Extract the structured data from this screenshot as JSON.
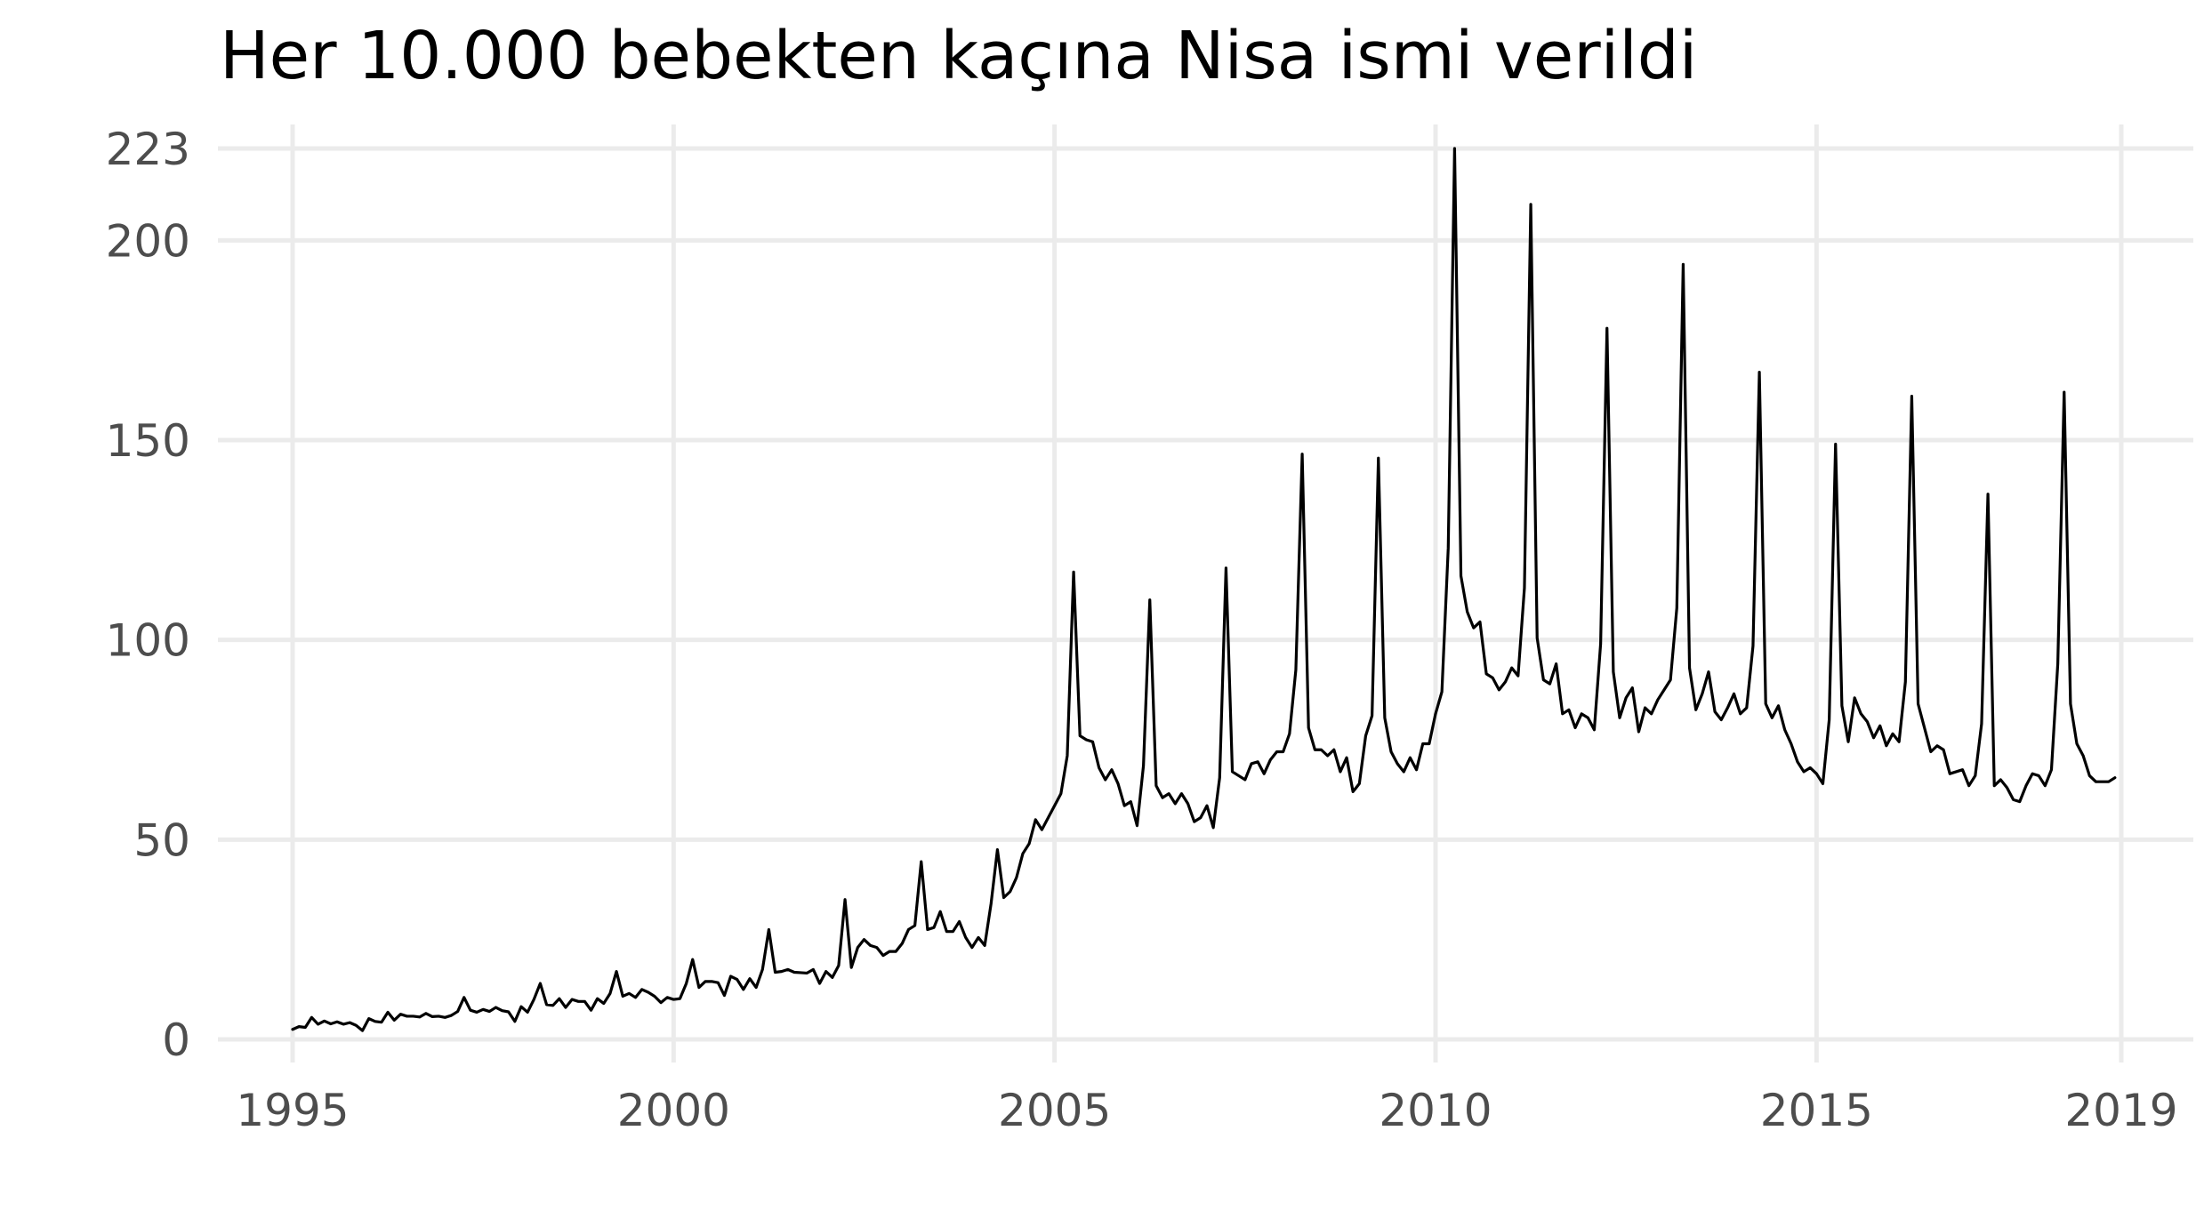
{
  "chart_data": {
    "type": "line",
    "title": "Her 10.000 bebekten kaçına Nisa ismi verildi",
    "subtitle": "",
    "xlabel": "",
    "ylabel": "",
    "xlim": [
      1994.85,
      2019.4
    ],
    "ylim": [
      -5,
      232
    ],
    "x_ticks": [
      {
        "value": 1995,
        "label": "1995"
      },
      {
        "value": 2000,
        "label": "2000"
      },
      {
        "value": 2005,
        "label": "2005"
      },
      {
        "value": 2010,
        "label": "2010"
      },
      {
        "value": 2015,
        "label": "2015"
      },
      {
        "value": 2019,
        "label": "2019"
      }
    ],
    "y_ticks": [
      {
        "value": 0,
        "label": "0"
      },
      {
        "value": 50,
        "label": "50"
      },
      {
        "value": 100,
        "label": "100"
      },
      {
        "value": 150,
        "label": "150"
      },
      {
        "value": 200,
        "label": "200"
      },
      {
        "value": 223,
        "label": "223"
      }
    ],
    "grid": true,
    "line_color": "#000000",
    "grid_color": "#ebebeb",
    "series": [
      {
        "x_start": 1995.0,
        "x_step": 0.0833333,
        "values": [
          2.5,
          3.2,
          3.0,
          5.5,
          3.8,
          4.6,
          3.9,
          4.4,
          3.8,
          4.2,
          3.5,
          2.2,
          5.2,
          4.5,
          4.3,
          6.8,
          4.8,
          6.3,
          5.8,
          5.8,
          5.6,
          6.5,
          5.7,
          5.8,
          5.5,
          6.0,
          7.0,
          10.5,
          7.3,
          6.8,
          7.5,
          7.0,
          8.0,
          7.2,
          6.9,
          4.5,
          8.2,
          6.8,
          10.0,
          14.0,
          8.7,
          8.5,
          10.2,
          8.0,
          10.0,
          9.5,
          9.5,
          7.3,
          10.2,
          9.0,
          11.5,
          17.0,
          10.8,
          11.5,
          10.5,
          12.5,
          11.8,
          10.8,
          9.2,
          10.5,
          10.0,
          10.2,
          14.0,
          20.0,
          13.0,
          14.5,
          14.5,
          14.2,
          11.0,
          15.8,
          15.0,
          12.5,
          15.2,
          13.0,
          17.5,
          27.5,
          16.8,
          17.0,
          17.5,
          16.8,
          16.7,
          16.6,
          17.5,
          14.0,
          17.0,
          15.5,
          18.5,
          35.0,
          18.0,
          23.0,
          25.0,
          23.5,
          23.0,
          21.0,
          22.0,
          22.0,
          24.0,
          27.5,
          28.5,
          44.5,
          27.5,
          28.0,
          32.0,
          27.0,
          27.0,
          29.5,
          25.5,
          23.0,
          25.5,
          23.5,
          34.0,
          47.5,
          35.5,
          37.0,
          40.5,
          46.5,
          49.0,
          55.0,
          52.5,
          55.5,
          58.5,
          61.5,
          71.0,
          117.0,
          76.0,
          75.0,
          74.5,
          68.0,
          65.0,
          67.5,
          64.0,
          58.5,
          59.5,
          53.5,
          68.5,
          110.0,
          63.5,
          60.5,
          61.5,
          59.0,
          61.5,
          59.0,
          54.5,
          55.5,
          58.5,
          53.0,
          65.5,
          118.0,
          67.0,
          66.0,
          65.0,
          69.0,
          69.5,
          66.5,
          70.0,
          72.0,
          72.0,
          76.5,
          92.5,
          146.5,
          78.0,
          72.5,
          72.5,
          71.0,
          72.5,
          67.0,
          70.5,
          62.0,
          64.0,
          76.0,
          81.0,
          145.5,
          80.5,
          72.0,
          69.0,
          67.0,
          70.5,
          67.5,
          74.0,
          74.0,
          81.5,
          87.0,
          123.0,
          223.0,
          116.0,
          107.0,
          103.0,
          104.5,
          91.5,
          90.5,
          87.5,
          89.5,
          93.0,
          91.0,
          113.0,
          209.0,
          100.5,
          90.0,
          89.0,
          94.0,
          81.5,
          82.5,
          78.0,
          81.5,
          80.5,
          77.5,
          99.0,
          178.0,
          92.0,
          80.5,
          85.5,
          88.0,
          77.0,
          83.0,
          81.5,
          85.0,
          87.5,
          90.0,
          108.0,
          194.0,
          93.0,
          82.5,
          86.5,
          92.0,
          82.0,
          80.0,
          83.0,
          86.5,
          81.5,
          83.0,
          98.5,
          167.0,
          84.0,
          80.5,
          83.5,
          77.5,
          74.0,
          69.5,
          67.0,
          68.0,
          66.5,
          64.0,
          80.0,
          149.0,
          83.5,
          74.5,
          85.5,
          81.5,
          79.5,
          75.5,
          78.5,
          73.5,
          76.5,
          74.5,
          89.5,
          161.0,
          84.0,
          78.0,
          72.0,
          73.5,
          72.5,
          66.5,
          67.0,
          67.5,
          63.5,
          66.0,
          79.0,
          136.5,
          63.5,
          65.0,
          63.0,
          60.0,
          59.5,
          63.5,
          66.5,
          66.0,
          63.5,
          67.5,
          94.0,
          162.0,
          84.0,
          74.0,
          71.0,
          66.0,
          64.5,
          64.5,
          64.5,
          65.5
        ]
      }
    ]
  }
}
